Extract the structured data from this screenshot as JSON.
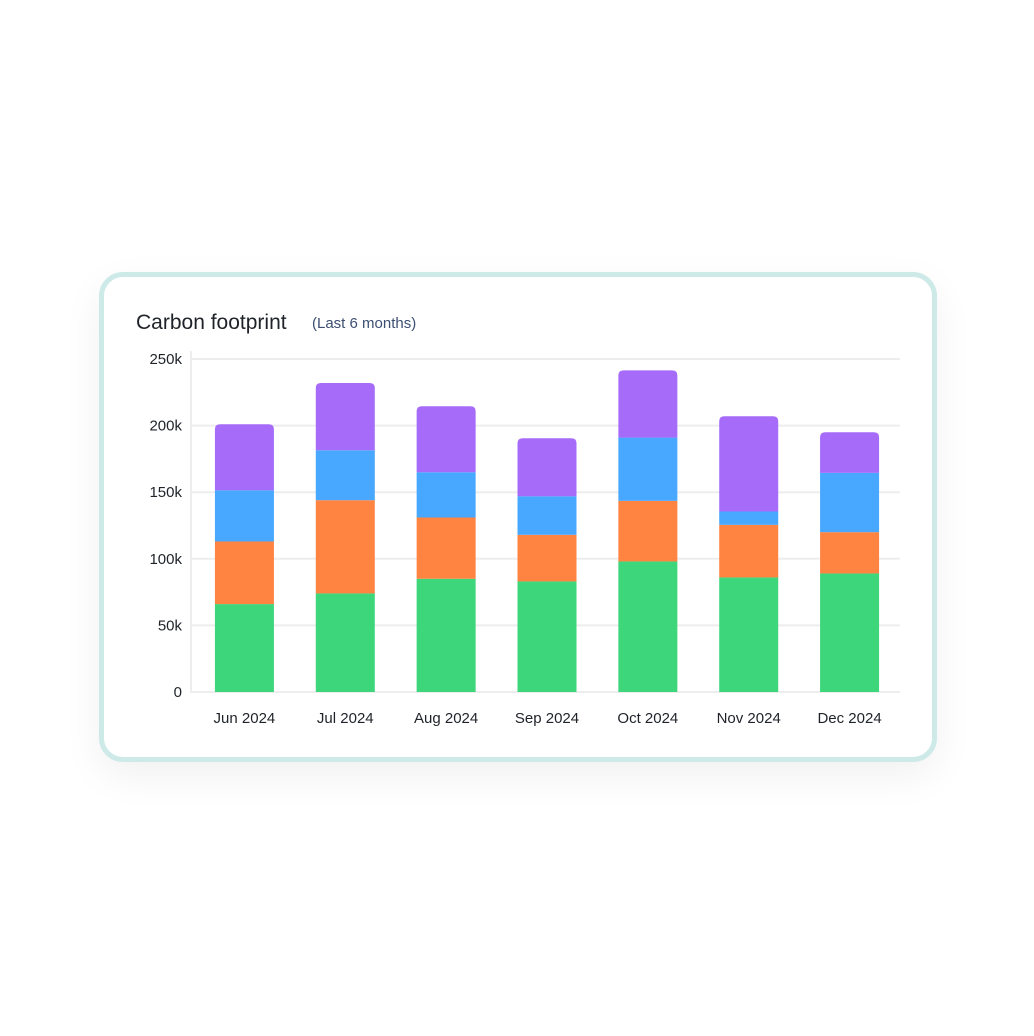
{
  "chart_data": {
    "type": "bar",
    "stacked": true,
    "title": "Carbon footprint",
    "subtitle": "(Last 6 months)",
    "xlabel": "",
    "ylabel": "",
    "ylim": [
      0,
      250000
    ],
    "yticks": [
      0,
      50000,
      100000,
      150000,
      200000,
      250000
    ],
    "ytick_labels": [
      "0",
      "50k",
      "100k",
      "150k",
      "200k",
      "250k"
    ],
    "grid": true,
    "legend": "none",
    "categories": [
      "Jun 2024",
      "Jul 2024",
      "Aug 2024",
      "Sep 2024",
      "Oct 2024",
      "Nov 2024",
      "Dec 2024"
    ],
    "series": [
      {
        "color": "#3dd67b",
        "values": [
          66000,
          74000,
          85000,
          83000,
          98000,
          86000,
          89000
        ]
      },
      {
        "color": "#ff8442",
        "values": [
          47000,
          70000,
          46000,
          35000,
          45500,
          39500,
          31000
        ]
      },
      {
        "color": "#48a8ff",
        "values": [
          38500,
          37500,
          34000,
          29000,
          47500,
          10000,
          44500
        ]
      },
      {
        "color": "#a66bf8",
        "values": [
          49500,
          50500,
          49500,
          43500,
          50500,
          71500,
          30500
        ]
      }
    ]
  },
  "colors": {
    "card_border": "#cdeae8",
    "grid": "#ededed"
  }
}
